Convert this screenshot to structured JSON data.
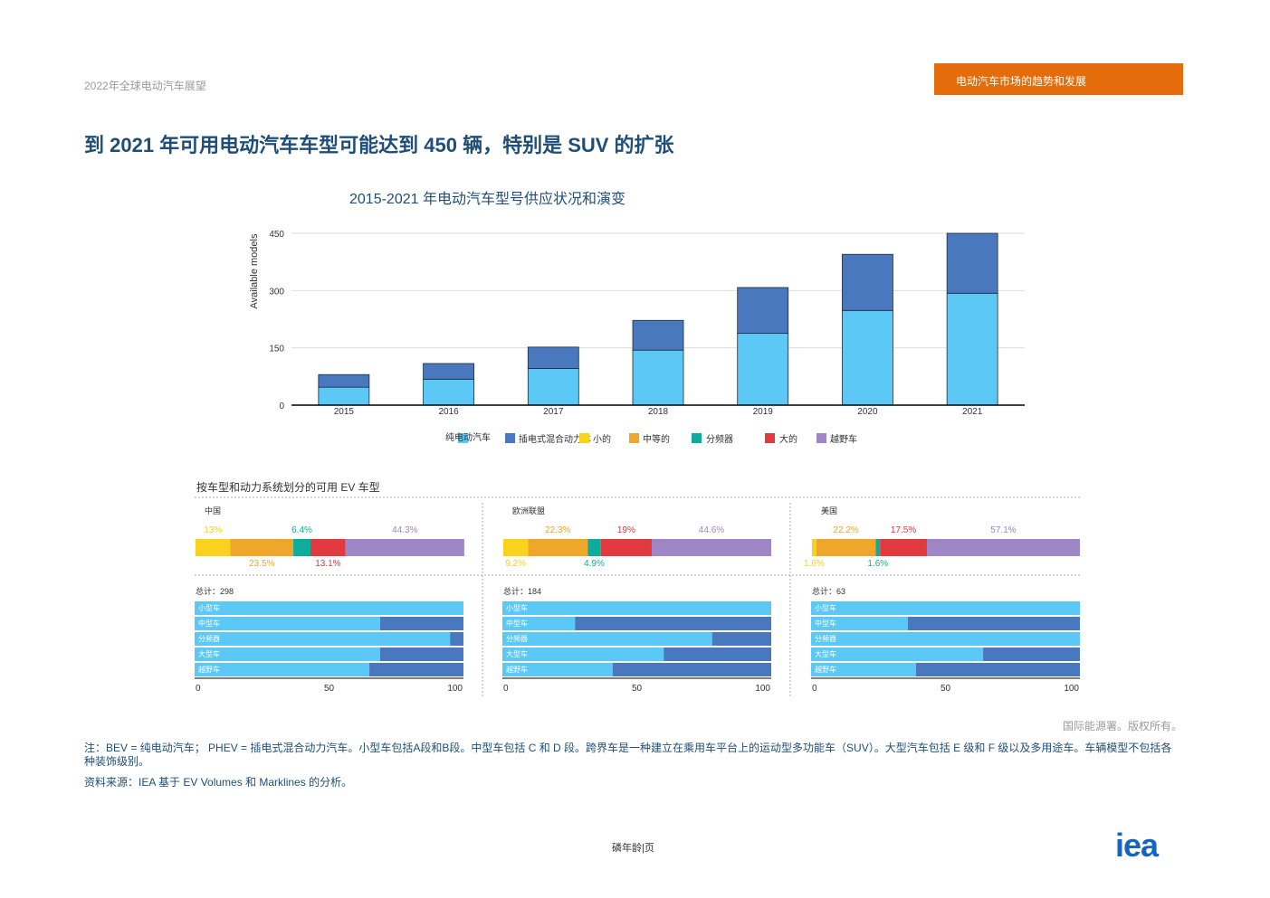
{
  "header": {
    "doc_title": "2022年全球电动汽车展望",
    "section_tag": "电动汽车市场的趋势和发展"
  },
  "main_title": "到 2021 年可用电动汽车车型可能达到 450 辆，特别是 SUV 的扩张",
  "chart_title": "2015-2021 年电动汽车型号供应状况和演变",
  "colors": {
    "bev": "#5bc8f5",
    "phev": "#4a78be",
    "small": "#f9d21d",
    "medium": "#eea72a",
    "crossover": "#0fac9c",
    "large": "#e0393e",
    "suv": "#9e86c7",
    "title_blue": "#1f4e79",
    "accent_orange": "#e46c0a"
  },
  "chart_data": [
    {
      "type": "bar",
      "stacked": true,
      "categories": [
        "2015",
        "2016",
        "2017",
        "2018",
        "2019",
        "2020",
        "2021"
      ],
      "series": [
        {
          "name": "纯电动汽车",
          "values": [
            47,
            68,
            96,
            144,
            188,
            248,
            293
          ]
        },
        {
          "name": "插电式混合动力车",
          "values": [
            33,
            41,
            56,
            78,
            120,
            147,
            157
          ]
        }
      ],
      "ylabel": "Available models",
      "ylim": [
        0,
        450
      ],
      "yticks": [
        0,
        150,
        300,
        450
      ],
      "grid": true,
      "legend_position": "bottom"
    },
    {
      "type": "bar",
      "stacked": true,
      "orientation": "horizontal",
      "subtitle": "按车型和动力系统划分的可用 EV 车型",
      "legend": [
        "小的",
        "中等的",
        "分频器",
        "大的",
        "越野车"
      ],
      "regions": [
        {
          "name": "中国",
          "segment_shares": [
            13,
            23.5,
            6.4,
            13.1,
            44.3
          ],
          "label_top": [
            "13%",
            "",
            "6.4%",
            "",
            "44.3%"
          ],
          "label_bottom": [
            "",
            "23.5%",
            "",
            "13.1%",
            ""
          ],
          "total_label": "总计：298"
        },
        {
          "name": "欧洲联盟",
          "segment_shares": [
            9.2,
            22.3,
            4.9,
            19,
            44.6
          ],
          "label_top": [
            "",
            "22.3%",
            "",
            "19%",
            "44.6%"
          ],
          "label_bottom": [
            "9.2%",
            "",
            "4.9%",
            "",
            ""
          ],
          "total_label": "总计：184"
        },
        {
          "name": "美国",
          "segment_shares": [
            1.6,
            22.2,
            1.6,
            17.5,
            57.1
          ],
          "label_top": [
            "",
            "22.2%",
            "",
            "17.5%",
            "57.1%"
          ],
          "label_bottom": [
            "1.6%",
            "",
            "1.6%",
            "",
            ""
          ],
          "total_label": "总计：63"
        }
      ]
    },
    {
      "type": "bar",
      "stacked": true,
      "orientation": "horizontal",
      "categories": [
        "小型车",
        "中型车",
        "分频器",
        "大型车",
        "越野车"
      ],
      "xlim": [
        0,
        100
      ],
      "xticks": [
        0,
        50,
        100
      ],
      "panels": [
        {
          "region": "中国",
          "bev_share": [
            100,
            69,
            95,
            69,
            65
          ]
        },
        {
          "region": "欧洲联盟",
          "bev_share": [
            100,
            27,
            78,
            60,
            41
          ]
        },
        {
          "region": "美国",
          "bev_share": [
            100,
            36,
            100,
            64,
            39
          ]
        }
      ]
    }
  ],
  "credit": "国际能源署。版权所有。",
  "note": "注：BEV = 纯电动汽车；  PHEV = 插电式混合动力汽车。小型车包括A段和B段。中型车包括 C 和 D 段。跨界车是一种建立在乘用车平台上的运动型多功能车（SUV）。大型汽车包括 E 级和 F 级以及多用途车。车辆模型不包括各种装饰级别。",
  "source": "资料来源：IEA 基于 EV Volumes 和 Marklines 的分析。",
  "page_number": "磷年龄|页",
  "logo": "iea"
}
